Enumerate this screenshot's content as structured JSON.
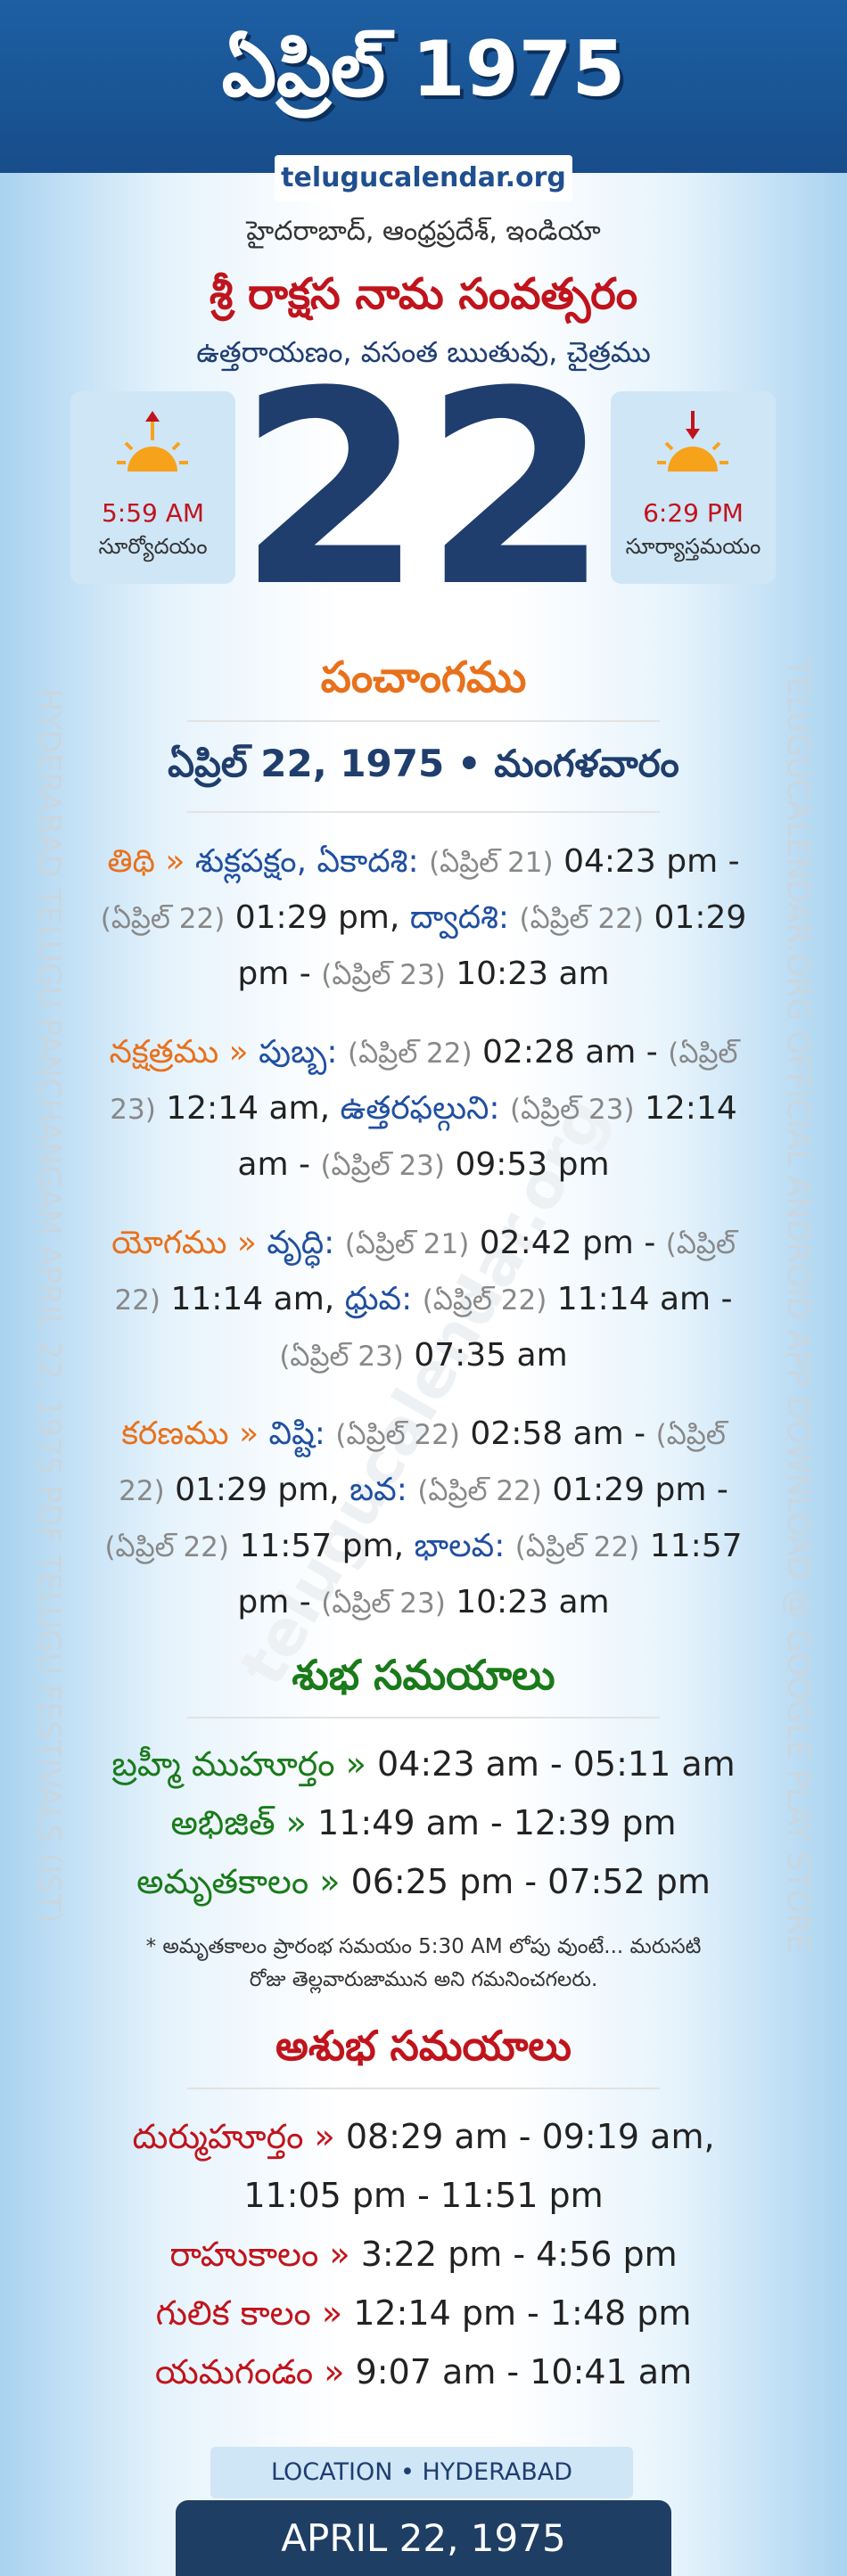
{
  "header": {
    "title": "ఏప్రిల్ 1975",
    "site": "telugucalendar.org"
  },
  "location_line": "హైదరాబాద్, ఆంధ్రప్రదేశ్, ఇండియా",
  "year_name": "శ్రీ రాక్షస నామ సంవత్సరం",
  "season": "ఉత్తరాయణం, వసంత ఋతువు, చైత్రము",
  "sunrise": {
    "time": "5:59 AM",
    "label": "సూర్యోదయం"
  },
  "sunset": {
    "time": "6:29 PM",
    "label": "సూర్యాస్తమయం"
  },
  "day": "22",
  "panchangam_title": "పంచాంగము",
  "date_line": "ఏప్రిల్ 22, 1975 • మంగళవారం",
  "entries": [
    {
      "label": "తిథి »",
      "items": [
        {
          "name": "శుక్లపక్షం, ఏకాదశి:",
          "start_date": "(ఏప్రిల్ 21)",
          "start": "04:23 pm -",
          "end_date": "(ఏప్రిల్ 22)",
          "end": "01:29 pm,"
        },
        {
          "name": "ద్వాదశి:",
          "start_date": "(ఏప్రిల్ 22)",
          "start": "01:29 pm -",
          "end_date": "(ఏప్రిల్ 23)",
          "end": "10:23 am"
        }
      ]
    },
    {
      "label": "నక్షత్రము »",
      "items": [
        {
          "name": "పుబ్బ:",
          "start_date": "(ఏప్రిల్ 22)",
          "start": "02:28 am -",
          "end_date": "(ఏప్రిల్ 23)",
          "end": "12:14 am,"
        },
        {
          "name": "ఉత్తరఫల్గుని:",
          "start_date": "(ఏప్రిల్ 23)",
          "start": "12:14 am -",
          "end_date": "(ఏప్రిల్ 23)",
          "end": "09:53 pm"
        }
      ]
    },
    {
      "label": "యోగము »",
      "items": [
        {
          "name": "వృద్ధి:",
          "start_date": "(ఏప్రిల్ 21)",
          "start": "02:42 pm -",
          "end_date": "(ఏప్రిల్ 22)",
          "end": "11:14 am,"
        },
        {
          "name": "ధ్రువ:",
          "start_date": "(ఏప్రిల్ 22)",
          "start": "11:14 am -",
          "end_date": "(ఏప్రిల్ 23)",
          "end": "07:35 am"
        }
      ]
    },
    {
      "label": "కరణము »",
      "items": [
        {
          "name": "విష్టి:",
          "start_date": "(ఏప్రిల్ 22)",
          "start": "02:58 am -",
          "end_date": "(ఏప్రిల్ 22)",
          "end": "01:29 pm,"
        },
        {
          "name": "బవ:",
          "start_date": "(ఏప్రిల్ 22)",
          "start": "01:29 pm -",
          "end_date": "(ఏప్రిల్ 22)",
          "end": "11:57 pm,"
        },
        {
          "name": "భాలవ:",
          "start_date": "(ఏప్రిల్ 22)",
          "start": "11:57 pm -",
          "end_date": "(ఏప్రిల్ 23)",
          "end": "10:23 am"
        }
      ]
    }
  ],
  "good_title": "శుభ సమయాలు",
  "good": [
    {
      "label": "బ్రహ్మీ ముహూర్తం »",
      "times": [
        "04:23 am - 05:11 am"
      ]
    },
    {
      "label": "అభిజిత్ »",
      "times": [
        "11:49 am - 12:39 pm"
      ]
    },
    {
      "label": "అమృతకాలం »",
      "times": [
        "06:25 pm - 07:52 pm"
      ]
    }
  ],
  "note": [
    "* అమృతకాలం ప్రారంభ సమయం 5:30 AM లోపు వుంటే... మరుసటి",
    "రోజు తెల్లవారుజామున అని గమనించగలరు."
  ],
  "bad_title": "అశుభ సమయాలు",
  "bad": [
    {
      "label": "దుర్ముహూర్తం »",
      "times": [
        "08:29 am - 09:19 am,",
        "11:05 pm - 11:51 pm"
      ]
    },
    {
      "label": "రాహుకాలం »",
      "times": [
        "3:22 pm - 4:56 pm"
      ]
    },
    {
      "label": "గులిక కాలం »",
      "times": [
        "12:14 pm - 1:48 pm"
      ]
    },
    {
      "label": "యమగండం »",
      "times": [
        "9:07 am - 10:41 am"
      ]
    }
  ],
  "footer": {
    "location": "LOCATION • HYDERABAD",
    "date": "APRIL 22, 1975"
  },
  "watermarks": {
    "left": "HYDERABAD TELUGU PANCHANGAM APRIL 22, 1975 PDF TELUGU FESTIVALS (IST)",
    "right": "TELUGUCALENDAR.ORG OFFICIAL ANDROID APP DOWNLOAD @ GOOGLE PLAY STORE",
    "center": "telugucalendar.org"
  }
}
